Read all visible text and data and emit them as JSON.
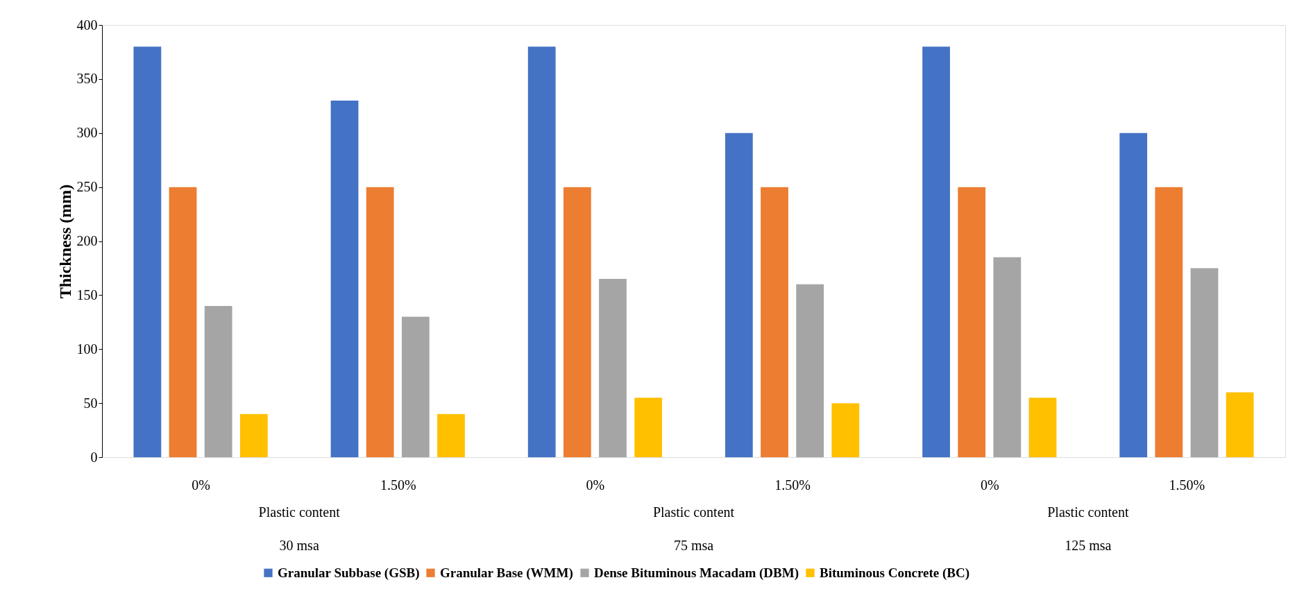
{
  "chart_data": {
    "type": "bar",
    "ylabel": "Thickness (mm)",
    "categories": [
      "0%",
      "1.50%",
      "0%",
      "1.50%",
      "0%",
      "1.50%"
    ],
    "series": [
      {
        "name": "Granular Subbase (GSB)",
        "color": "#4472c4",
        "values": [
          380,
          330,
          380,
          300,
          380,
          300
        ]
      },
      {
        "name": "Granular Base (WMM)",
        "color": "#ed7d31",
        "values": [
          250,
          250,
          250,
          250,
          250,
          250
        ]
      },
      {
        "name": "Dense Bituminous Macadam (DBM)",
        "color": "#a5a5a5",
        "values": [
          140,
          130,
          165,
          160,
          185,
          175
        ]
      },
      {
        "name": "Bituminous Concrete (BC)",
        "color": "#ffc000",
        "values": [
          40,
          40,
          55,
          50,
          55,
          60
        ]
      }
    ],
    "annotations": [
      "Plastic content",
      "30 msa",
      "Plastic content",
      "75 msa",
      "Plastic content",
      "125 msa"
    ],
    "ylim": [
      0,
      400
    ],
    "yticks": [
      0,
      50,
      100,
      150,
      200,
      250,
      300,
      350,
      400
    ],
    "grid": false,
    "legend": "bottom"
  }
}
